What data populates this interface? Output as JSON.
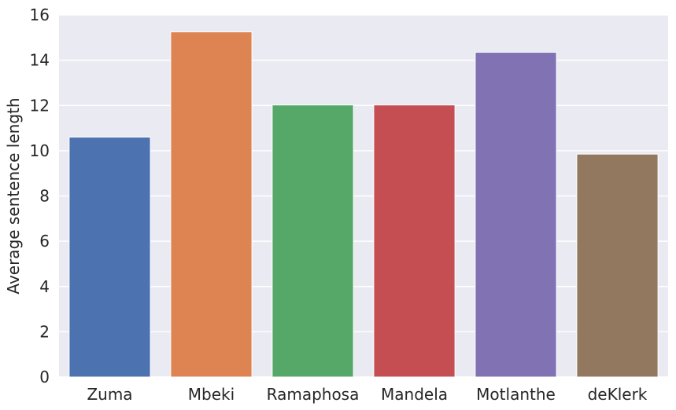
{
  "chart_data": {
    "type": "bar",
    "title": "",
    "xlabel": "",
    "ylabel": "Average sentence length",
    "categories": [
      "Zuma",
      "Mbeki",
      "Ramaphosa",
      "Mandela",
      "Motlanthe",
      "deKlerk"
    ],
    "values": [
      10.6,
      15.25,
      12.02,
      12.02,
      14.35,
      9.85
    ],
    "ylim": [
      0,
      16
    ],
    "yticks": [
      "0",
      "2",
      "4",
      "6",
      "8",
      "10",
      "12",
      "14",
      "16"
    ],
    "grid": true,
    "legend": "none",
    "colors": [
      "#4c72b0",
      "#dd8452",
      "#55a868",
      "#c44e52",
      "#8172b3",
      "#937860"
    ],
    "background_color": "#eaeaf2",
    "grid_color": "#ffffff"
  }
}
